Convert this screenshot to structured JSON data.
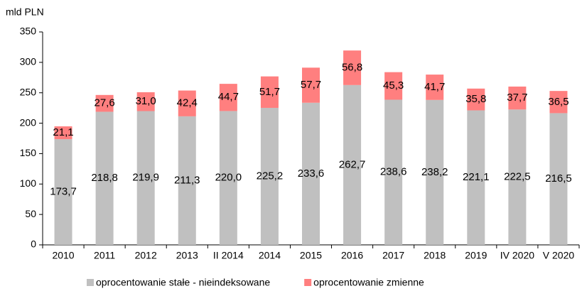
{
  "chart_data": {
    "type": "stacked_bar",
    "y_label": "mld PLN",
    "categories": [
      "2010",
      "2011",
      "2012",
      "2013",
      "II 2014",
      "2014",
      "2015",
      "2016",
      "2017",
      "2018",
      "2019",
      "IV 2020",
      "V 2020"
    ],
    "series": [
      {
        "name": "oprocentowanie stałe - nieindeksowane",
        "color": "#c0c0c0",
        "values": [
          173.7,
          218.8,
          219.9,
          211.3,
          220.0,
          225.2,
          233.6,
          262.7,
          238.6,
          238.2,
          221.1,
          222.5,
          216.5
        ],
        "value_labels": [
          "173,7",
          "218,8",
          "219,9",
          "211,3",
          "220,0",
          "225,2",
          "233,6",
          "262,7",
          "238,6",
          "238,2",
          "221,1",
          "222,5",
          "216,5"
        ]
      },
      {
        "name": "oprocentowanie zmienne",
        "color": "#ff7f7f",
        "values": [
          21.1,
          27.6,
          31.0,
          42.4,
          44.7,
          51.7,
          57.7,
          56.8,
          45.3,
          41.7,
          35.8,
          37.7,
          36.5
        ],
        "value_labels": [
          "21,1",
          "27,6",
          "31,0",
          "42,4",
          "44,7",
          "51,7",
          "57,7",
          "56,8",
          "45,3",
          "41,7",
          "35,8",
          "37,7",
          "36,5"
        ]
      }
    ],
    "ylim": [
      0,
      350
    ],
    "yticks": [
      0,
      50,
      100,
      150,
      200,
      250,
      300,
      350
    ],
    "grid": false,
    "legend": "bottom"
  }
}
